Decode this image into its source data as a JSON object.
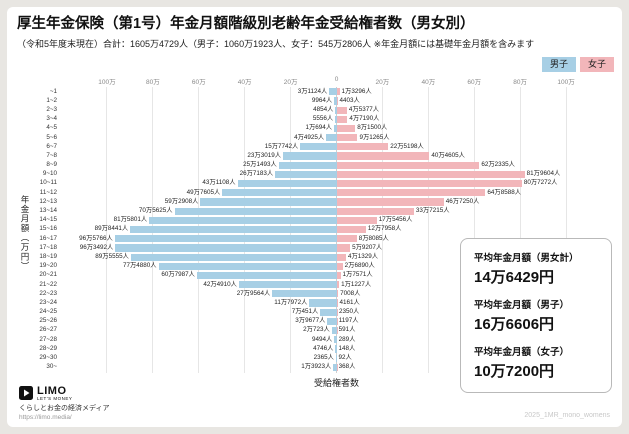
{
  "page": {
    "title": "厚生年金保険（第1号）年金月額階級別老齢年金受給権者数（男女別）",
    "subtitle": "（令和5年度末現在）合計：1605万4729人（男子：1060万1923人、女子：545万2806人 ※年金月額には基礎年金月額を含みます",
    "watermark": "2025_1MR_mono_womens"
  },
  "legend": {
    "male": "男子",
    "female": "女子"
  },
  "colors": {
    "male": "#a7cfe5",
    "female": "#f2b6ba",
    "card_bg": "#ffffff",
    "page_bg": "#e8e6e2"
  },
  "axis": {
    "ylabel": "年金月額（万円）",
    "xlabel": "受給権者数",
    "ticks": [
      "100万",
      "80万",
      "60万",
      "40万",
      "20万",
      "0",
      "20万",
      "40万",
      "60万",
      "80万",
      "100万"
    ]
  },
  "summary_box": {
    "items": [
      {
        "label": "平均年金月額（男女計）",
        "value": "14万6429円"
      },
      {
        "label": "平均年金月額（男子）",
        "value": "16万6606円"
      },
      {
        "label": "平均年金月額（女子）",
        "value": "10万7200円"
      }
    ]
  },
  "footer": {
    "logo_text": "LIMO",
    "logo_sub": "LET'S MONEY",
    "tagline": "くらしとお金の経済メディア",
    "url": "https://limo.media/"
  },
  "chart_data": {
    "type": "bar",
    "variant": "population_pyramid",
    "title": "厚生年金保険（第1号）年金月額階級別老齢年金受給権者数（男女別）",
    "unit": "人",
    "categories_unit": "万円",
    "grid": true,
    "legend_position": "top-right",
    "xlim_per_side": [
      0,
      1000000
    ],
    "categories": [
      "~1",
      "1~2",
      "2~3",
      "3~4",
      "4~5",
      "5~6",
      "6~7",
      "7~8",
      "8~9",
      "9~10",
      "10~11",
      "11~12",
      "12~13",
      "13~14",
      "14~15",
      "15~16",
      "16~17",
      "17~18",
      "18~19",
      "19~20",
      "20~21",
      "21~22",
      "22~23",
      "23~24",
      "24~25",
      "25~26",
      "26~27",
      "27~28",
      "28~29",
      "29~30",
      "30~"
    ],
    "series": [
      {
        "name": "男子",
        "side": "left",
        "color": "#a7cfe5",
        "values": [
          31124,
          9964,
          4854,
          5556,
          10694,
          44925,
          157742,
          233019,
          251493,
          267183,
          431108,
          497605,
          592908,
          705625,
          815801,
          898441,
          965766,
          963492,
          895555,
          774880,
          607987,
          424910,
          279564,
          117972,
          70451,
          39677,
          20723,
          9494,
          4746,
          2365,
          13923
        ]
      },
      {
        "name": "女子",
        "side": "right",
        "color": "#f2b6ba",
        "values": [
          13296,
          4403,
          45377,
          47190,
          81500,
          91265,
          225198,
          404605,
          622335,
          819604,
          807272,
          648588,
          467250,
          337215,
          175456,
          127958,
          88085,
          59207,
          41329,
          26890,
          17571,
          11227,
          7008,
          4161,
          2350,
          1197,
          591,
          289,
          148,
          92,
          368
        ]
      }
    ]
  }
}
